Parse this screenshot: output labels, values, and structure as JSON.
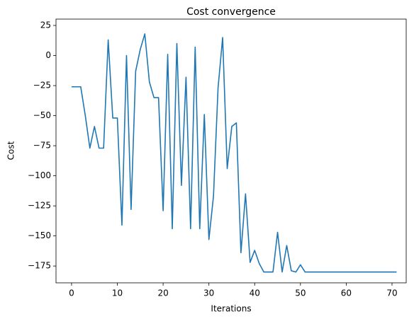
{
  "chart_data": {
    "type": "line",
    "title": "Cost convergence",
    "x_label": "Iterations",
    "y_label": "Cost",
    "x": [
      0,
      1,
      2,
      3,
      4,
      5,
      6,
      7,
      8,
      9,
      10,
      11,
      12,
      13,
      14,
      15,
      16,
      17,
      18,
      19,
      20,
      21,
      22,
      23,
      24,
      25,
      26,
      27,
      28,
      29,
      30,
      31,
      32,
      33,
      34,
      35,
      36,
      37,
      38,
      39,
      40,
      41,
      42,
      43,
      44,
      45,
      46,
      47,
      48,
      49,
      50,
      51,
      52,
      53,
      54,
      55,
      56,
      57,
      58,
      59,
      60,
      61,
      62,
      63,
      64,
      65,
      66,
      67,
      68,
      69,
      70,
      71
    ],
    "series": [
      {
        "name": "Cost",
        "color": "#1f77b4",
        "values": [
          -26,
          -26,
          -26,
          -50,
          -77,
          -59,
          -77,
          -77,
          13,
          -52,
          -52,
          -141,
          0,
          -128,
          -13,
          5,
          18,
          -22,
          -35,
          -35,
          -129,
          1,
          -144,
          10,
          -108,
          -18,
          -144,
          7,
          -144,
          -49,
          -153,
          -117,
          -27,
          15,
          -94,
          -59,
          -56,
          -164,
          -115,
          -172,
          -162,
          -173,
          -180,
          -180,
          -180,
          -147,
          -180,
          -158,
          -179,
          -180,
          -174,
          -180,
          -180,
          -180,
          -180,
          -180,
          -180,
          -180,
          -180,
          -180,
          -180,
          -180,
          -180,
          -180,
          -180,
          -180,
          -180,
          -180,
          -180,
          -180,
          -180,
          -180
        ]
      }
    ],
    "xlim": [
      -3.4,
      73.1
    ],
    "ylim": [
      -189,
      30.3
    ],
    "xticks": [
      0,
      10,
      20,
      30,
      40,
      50,
      60,
      70
    ],
    "yticks": [
      25,
      0,
      {
        "value": -25,
        "label": "−25"
      },
      {
        "value": -50,
        "label": "−50"
      },
      {
        "value": -75,
        "label": "−75"
      },
      {
        "value": -100,
        "label": "−100"
      },
      {
        "value": -125,
        "label": "−125"
      },
      {
        "value": -150,
        "label": "−150"
      },
      {
        "value": -175,
        "label": "−175"
      }
    ]
  }
}
